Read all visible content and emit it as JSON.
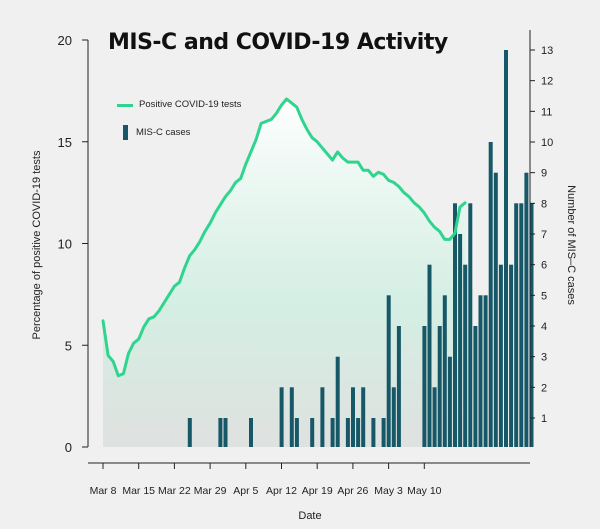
{
  "chart_data": {
    "type": "bar+line",
    "title": "MIS-C and COVID-19 Activity",
    "xlabel": "Date",
    "ylabel_left": "Percentage of positive COVID-19 tests",
    "ylabel_right": "Number of MIS–C cases",
    "ylim_left": [
      0,
      20
    ],
    "ylim_right": [
      0,
      13
    ],
    "yticks_left": [
      "0",
      "5",
      "10",
      "15",
      "20"
    ],
    "yticks_right": [
      "1",
      "2",
      "3",
      "4",
      "5",
      "6",
      "7",
      "8",
      "9",
      "10",
      "11",
      "12",
      "13"
    ],
    "xtick_labels": [
      "Mar 8",
      "Mar 15",
      "Mar 22",
      "Mar 29",
      "Apr 5",
      "Apr 12",
      "Apr 19",
      "Apr 26",
      "May 3",
      "May 10"
    ],
    "legend": {
      "line": "Positive COVID-19 tests",
      "bars": "MIS-C cases"
    },
    "colors": {
      "line": "#2fd48f",
      "bars": "#175868"
    },
    "series": [
      {
        "name": "Positive COVID-19 tests",
        "kind": "line",
        "values": [
          6.2,
          4.5,
          4.2,
          3.5,
          3.6,
          4.6,
          5.1,
          5.3,
          5.9,
          6.3,
          6.4,
          6.7,
          7.1,
          7.5,
          7.9,
          8.1,
          8.8,
          9.4,
          9.7,
          10.1,
          10.6,
          11.0,
          11.5,
          11.9,
          12.3,
          12.6,
          13.0,
          13.2,
          13.9,
          14.5,
          15.1,
          15.9,
          16.0,
          16.1,
          16.4,
          16.8,
          17.1,
          16.9,
          16.7,
          16.1,
          15.6,
          15.2,
          15.0,
          14.7,
          14.4,
          14.1,
          14.5,
          14.2,
          14.0,
          14.0,
          14.0,
          13.6,
          13.6,
          13.3,
          13.5,
          13.4,
          13.1,
          13.0,
          12.8,
          12.5,
          12.3,
          12.0,
          11.8,
          11.5,
          11.1,
          10.8,
          10.6,
          10.2,
          10.2,
          10.5,
          11.8,
          12.0
        ]
      },
      {
        "name": "MIS-C cases",
        "kind": "bar",
        "values": [
          0,
          0,
          0,
          0,
          0,
          0,
          0,
          0,
          1,
          0,
          0,
          0,
          0,
          0,
          1,
          1,
          0,
          0,
          0,
          0,
          1,
          0,
          0,
          0,
          0,
          0,
          2,
          0,
          2,
          1,
          0,
          0,
          1,
          0,
          2,
          0,
          1,
          3,
          0,
          1,
          2,
          1,
          2,
          0,
          1,
          0,
          1,
          5,
          2,
          4,
          0,
          0,
          0,
          0,
          4,
          6,
          2,
          4,
          5,
          3,
          8,
          7,
          6,
          8,
          4,
          5,
          5,
          10,
          9,
          6,
          13,
          6,
          8,
          8,
          9,
          8
        ]
      }
    ]
  }
}
